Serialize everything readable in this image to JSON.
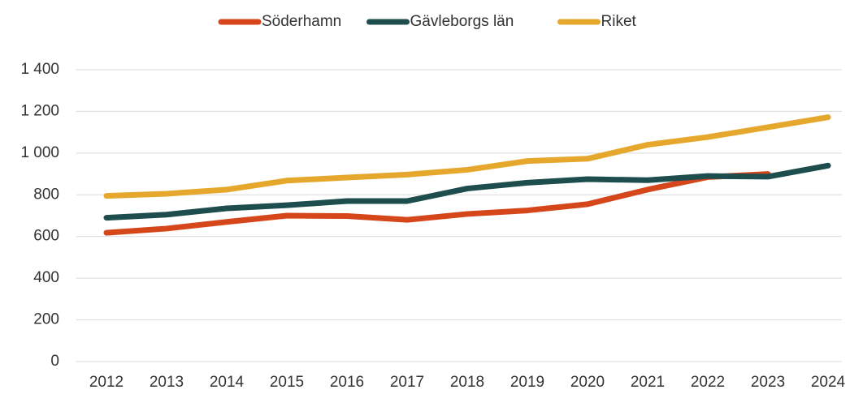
{
  "chart_data": {
    "type": "line",
    "categories": [
      "2012",
      "2013",
      "2014",
      "2015",
      "2016",
      "2017",
      "2018",
      "2019",
      "2020",
      "2021",
      "2022",
      "2023",
      "2024"
    ],
    "series": [
      {
        "name": "Söderhamn",
        "color": "#d6461b",
        "values": [
          618,
          638,
          670,
          700,
          698,
          680,
          708,
          725,
          755,
          825,
          885,
          900,
          null
        ]
      },
      {
        "name": "Gävleborgs län",
        "color": "#1e4d4e",
        "values": [
          690,
          705,
          735,
          750,
          770,
          770,
          830,
          858,
          875,
          870,
          890,
          887,
          940
        ]
      },
      {
        "name": "Riket",
        "color": "#e6a82c",
        "values": [
          795,
          805,
          825,
          868,
          883,
          897,
          920,
          962,
          973,
          1040,
          1077,
          1124,
          1172
        ]
      }
    ],
    "ylim": [
      0,
      1400
    ],
    "yticks": [
      0,
      200,
      400,
      600,
      800,
      {
        "value": 1000,
        "label": "1 000"
      },
      {
        "value": 1200,
        "label": "1 200"
      },
      {
        "value": 1400,
        "label": "1 400"
      }
    ],
    "grid": true,
    "legend": "top"
  }
}
